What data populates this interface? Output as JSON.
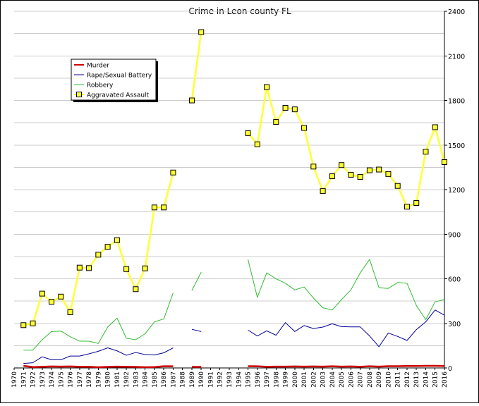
{
  "chart_data": {
    "type": "line",
    "title": "Crime in Leon county FL",
    "xlabel": "",
    "ylabel": "",
    "ylim": [
      0,
      2400
    ],
    "y_ticks": [
      0,
      300,
      600,
      900,
      1200,
      1500,
      1800,
      2100,
      2400
    ],
    "y_axis_side": "right",
    "grid": "horizontal",
    "legend_position": "top-left",
    "x": [
      "1970",
      "1971",
      "1972",
      "1973",
      "1974",
      "1975",
      "1976",
      "1977",
      "1978",
      "1979",
      "1980",
      "1981",
      "1982",
      "1983",
      "1984",
      "1985",
      "1986",
      "1987",
      "1988",
      "1989",
      "1990",
      "1991",
      "1992",
      "1993",
      "1994",
      "1995",
      "1996",
      "1997",
      "1998",
      "1999",
      "2000",
      "2001",
      "2002",
      "2003",
      "2004",
      "2005",
      "2006",
      "2007",
      "2008",
      "2009",
      "2010",
      "2011",
      "2012",
      "2013",
      "2014",
      "2015",
      "2016"
    ],
    "series": [
      {
        "name": "Murder",
        "color": "#cc0000",
        "values": [
          null,
          14,
          6,
          8,
          10,
          9,
          10,
          8,
          8,
          5,
          7,
          9,
          8,
          7,
          5,
          6,
          11,
          11,
          null,
          7,
          7,
          null,
          null,
          null,
          null,
          12,
          11,
          8,
          9,
          9,
          10,
          9,
          10,
          9,
          11,
          9,
          10,
          8,
          11,
          9,
          12,
          12,
          13,
          13,
          14,
          14,
          13
        ]
      },
      {
        "name": "Rape/Sexual Battery",
        "color": "#000099",
        "values": [
          null,
          30,
          35,
          75,
          55,
          55,
          80,
          80,
          95,
          112,
          135,
          115,
          85,
          104,
          90,
          87,
          102,
          135,
          null,
          260,
          245,
          null,
          null,
          null,
          null,
          255,
          215,
          250,
          220,
          305,
          245,
          285,
          265,
          275,
          297,
          278,
          276,
          276,
          215,
          143,
          235,
          212,
          185,
          258,
          310,
          390,
          355
        ]
      },
      {
        "name": "Robbery",
        "color": "#33bb33",
        "values": [
          null,
          120,
          120,
          190,
          245,
          248,
          210,
          180,
          180,
          165,
          275,
          335,
          200,
          190,
          230,
          310,
          330,
          505,
          null,
          520,
          645,
          null,
          null,
          null,
          null,
          730,
          475,
          640,
          600,
          570,
          525,
          545,
          470,
          405,
          390,
          460,
          525,
          640,
          730,
          540,
          535,
          575,
          570,
          420,
          325,
          445,
          460
        ]
      },
      {
        "name": "Aggravated Assault",
        "color": "#ffff33",
        "marker": "square",
        "values": [
          null,
          288,
          300,
          500,
          445,
          480,
          375,
          675,
          672,
          762,
          815,
          860,
          665,
          530,
          670,
          1080,
          1080,
          1315,
          null,
          1800,
          2260,
          null,
          null,
          null,
          null,
          1580,
          1505,
          1890,
          1655,
          1750,
          1740,
          1615,
          1355,
          1190,
          1290,
          1365,
          1300,
          1285,
          1330,
          1335,
          1305,
          1225,
          1085,
          1110,
          1455,
          1620,
          1385
        ]
      }
    ]
  }
}
